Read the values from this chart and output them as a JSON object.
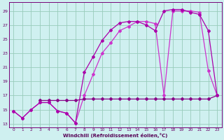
{
  "line1": {
    "x": [
      0,
      1,
      2,
      3,
      4,
      5,
      6,
      7,
      8,
      9,
      10,
      11,
      12,
      13,
      14,
      15,
      16,
      17,
      18,
      19,
      20,
      21,
      22,
      23
    ],
    "y": [
      14.8,
      13.8,
      15.0,
      16.0,
      16.0,
      14.8,
      14.5,
      13.1,
      20.3,
      22.5,
      24.8,
      26.3,
      27.3,
      27.5,
      27.5,
      27.0,
      26.2,
      29.0,
      29.2,
      29.2,
      28.8,
      28.5,
      26.2,
      17.0
    ]
  },
  "line2": {
    "x": [
      0,
      1,
      2,
      3,
      4,
      5,
      6,
      7,
      8,
      9,
      10,
      11,
      12,
      13,
      14,
      15,
      16,
      17,
      18,
      19,
      20,
      21,
      22,
      23
    ],
    "y": [
      14.8,
      13.8,
      15.0,
      16.0,
      16.0,
      14.8,
      14.5,
      13.1,
      17.0,
      20.0,
      23.0,
      24.5,
      26.2,
      26.8,
      27.5,
      27.5,
      27.2,
      17.0,
      29.0,
      29.0,
      29.0,
      28.8,
      20.5,
      17.0
    ]
  },
  "line3": {
    "x": [
      3,
      4,
      5,
      6,
      7,
      8,
      9,
      10,
      11,
      12,
      13,
      14,
      15,
      16,
      17,
      18,
      19,
      20,
      21,
      22,
      23
    ],
    "y": [
      16.3,
      16.3,
      16.3,
      16.3,
      16.3,
      16.5,
      16.5,
      16.5,
      16.5,
      16.5,
      16.5,
      16.5,
      16.5,
      16.5,
      16.5,
      16.5,
      16.5,
      16.5,
      16.5,
      16.5,
      17.0
    ]
  },
  "xlim": [
    -0.5,
    23.5
  ],
  "ylim": [
    12.5,
    30.2
  ],
  "yticks": [
    13,
    15,
    17,
    19,
    21,
    23,
    25,
    27,
    29
  ],
  "xticks": [
    0,
    1,
    2,
    3,
    4,
    5,
    6,
    7,
    8,
    9,
    10,
    11,
    12,
    13,
    14,
    15,
    16,
    17,
    18,
    19,
    20,
    21,
    22,
    23
  ],
  "xlabel": "Windchill (Refroidissement éolien,°C)",
  "bg_color": "#cff0f0",
  "grid_color": "#99ccbb",
  "line_color": "#990099"
}
